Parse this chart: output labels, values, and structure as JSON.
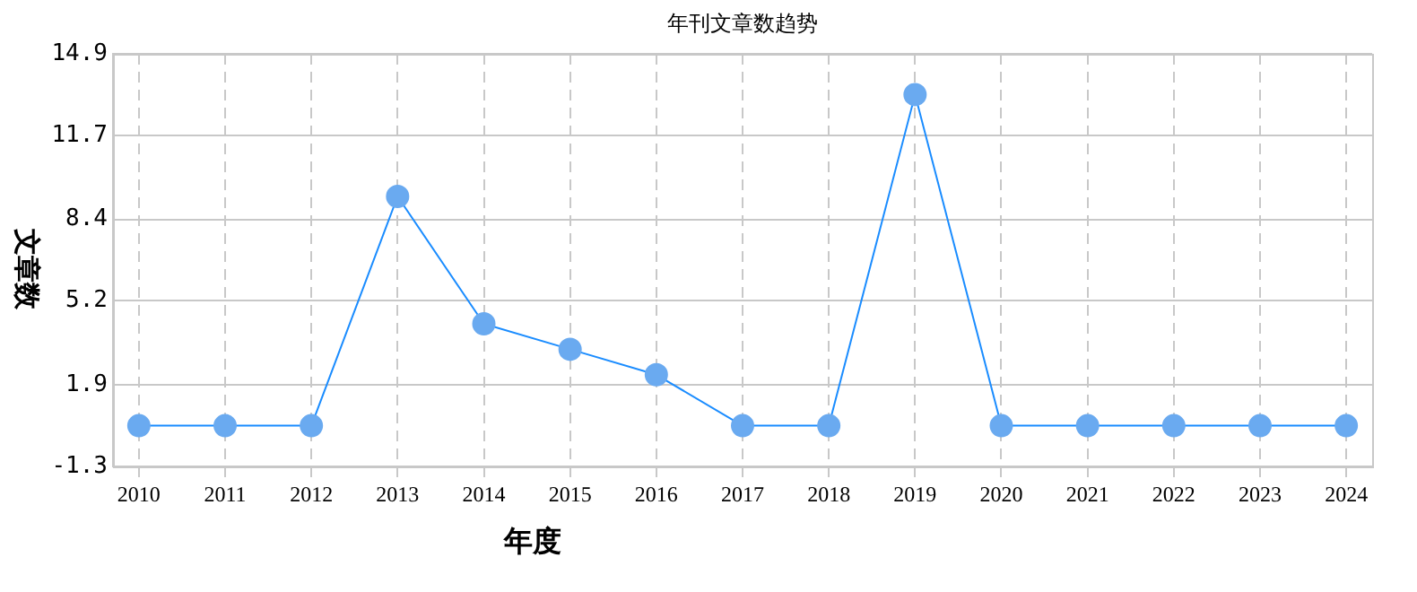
{
  "chart_data": {
    "type": "line",
    "title": "年刊文章数趋势",
    "xlabel": "年度",
    "ylabel": "文章数",
    "x": [
      2010,
      2011,
      2012,
      2013,
      2014,
      2015,
      2016,
      2017,
      2018,
      2019,
      2020,
      2021,
      2022,
      2023,
      2024
    ],
    "xlim": [
      2009.7,
      2024.3
    ],
    "xticks": [
      2010,
      2011,
      2012,
      2013,
      2014,
      2015,
      2016,
      2017,
      2018,
      2019,
      2020,
      2021,
      2022,
      2023,
      2024
    ],
    "ylim": [
      -1.3,
      14.9
    ],
    "yticks": [
      -1.3,
      1.9,
      5.2,
      8.4,
      11.7,
      14.9
    ],
    "series": [
      {
        "color": "#1a8cff",
        "values": [
          0.3,
          0.3,
          0.3,
          9.3,
          4.3,
          3.3,
          2.3,
          0.3,
          0.3,
          13.3,
          0.3,
          0.3,
          0.3,
          0.3,
          0.3
        ]
      }
    ],
    "marker": "circle",
    "grid": true,
    "legend": false
  }
}
